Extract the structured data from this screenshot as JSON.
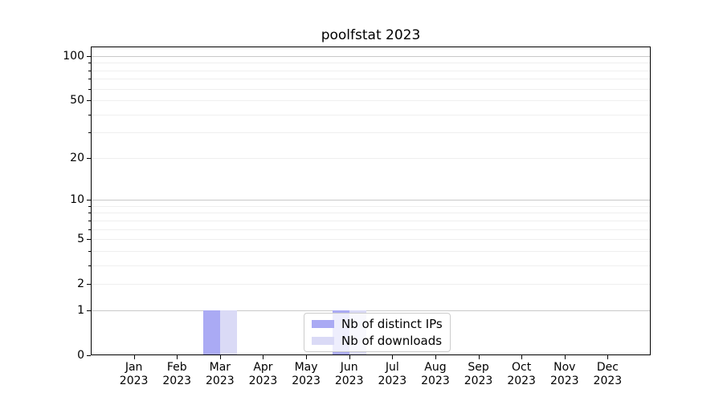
{
  "chart_data": {
    "type": "bar",
    "title": "poolfstat 2023",
    "categories": [
      "Jan 2023",
      "Feb 2023",
      "Mar 2023",
      "Apr 2023",
      "May 2023",
      "Jun 2023",
      "Jul 2023",
      "Aug 2023",
      "Sep 2023",
      "Oct 2023",
      "Nov 2023",
      "Dec 2023"
    ],
    "series": [
      {
        "name": "Nb of distinct IPs",
        "color": "#aaaaf4",
        "values": [
          0,
          0,
          1,
          0,
          0,
          1,
          0,
          0,
          0,
          0,
          0,
          0
        ]
      },
      {
        "name": "Nb of downloads",
        "color": "#dadaf6",
        "values": [
          0,
          0,
          1,
          0,
          0,
          1,
          0,
          0,
          0,
          0,
          0,
          0
        ]
      }
    ],
    "xlabel": "",
    "ylabel": "",
    "y_scale": "log1p",
    "ylim": [
      0,
      118
    ],
    "y_tick_labels": [
      0,
      1,
      2,
      5,
      10,
      20,
      50,
      100
    ],
    "y_gridlines_decade": [
      1,
      10,
      100
    ],
    "y_gridlines_sub": [
      2,
      3,
      4,
      5,
      6,
      7,
      8,
      9,
      20,
      30,
      40,
      50,
      60,
      70,
      80,
      90
    ],
    "grid": "horizontal",
    "legend_position": "lower-center-inside",
    "axis_color": "#000000",
    "decade_grid_color": "#c9c9c9",
    "sub_grid_color": "#efefef"
  }
}
